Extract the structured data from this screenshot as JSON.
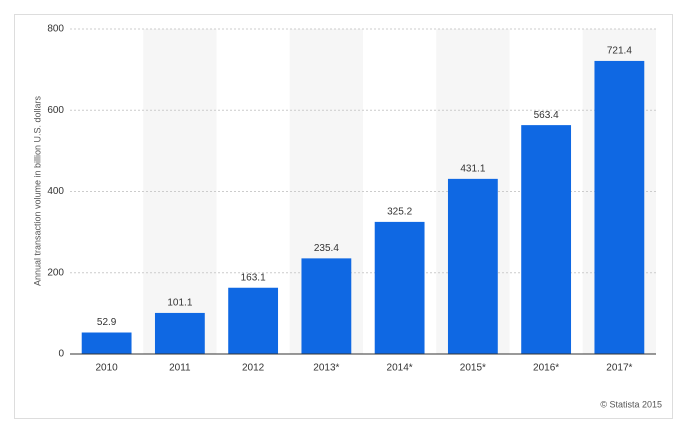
{
  "chart_data": {
    "type": "bar",
    "y_label": "Annual transaction volume in billion U.S. dollars",
    "categories": [
      "2010",
      "2011",
      "2012",
      "2013*",
      "2014*",
      "2015*",
      "2016*",
      "2017*"
    ],
    "values": [
      52.9,
      101.1,
      163.1,
      235.4,
      325.2,
      431.1,
      563.4,
      721.4
    ],
    "color": "#0f68e3",
    "ylim": [
      0,
      800
    ],
    "yticks": [
      0,
      200,
      400,
      600,
      800
    ],
    "grid": true,
    "band_shading": true,
    "credit": "© Statista 2015"
  }
}
